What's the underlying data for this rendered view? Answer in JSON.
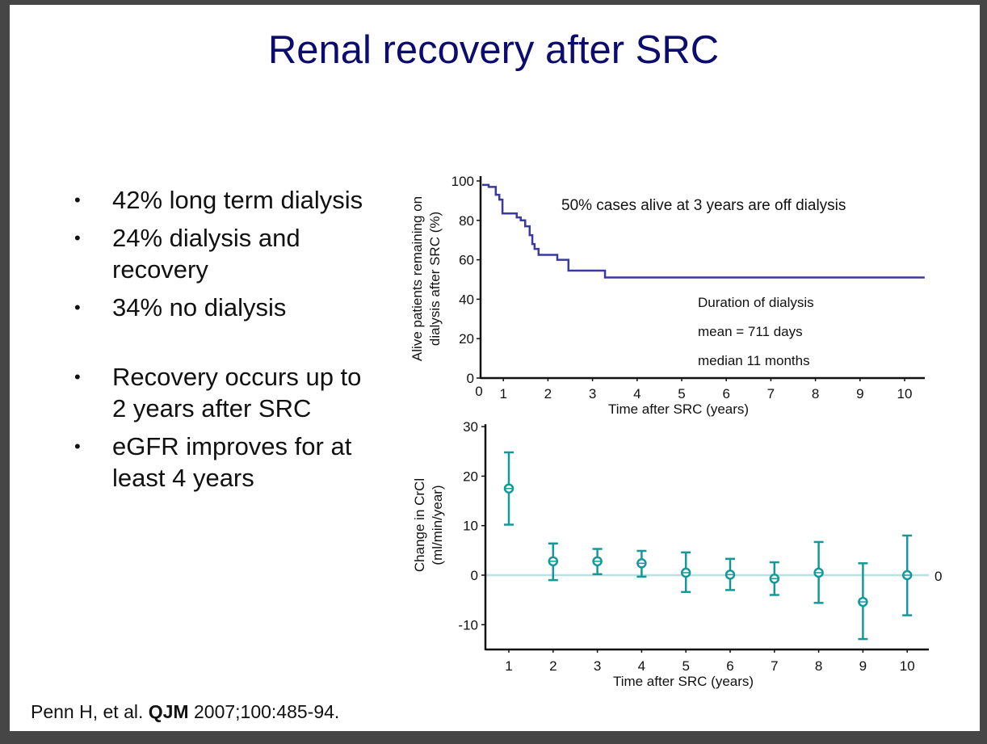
{
  "slide": {
    "title": "Renal recovery after SRC",
    "bullets": [
      "42% long term dialysis",
      "24% dialysis and recovery",
      "34% no dialysis",
      "Recovery occurs up to 2 years after SRC",
      "eGFR improves for at least 4 years"
    ],
    "citation": {
      "authors": "Penn H, et al. ",
      "journal": "QJM",
      "details": " 2007;100:485-94."
    }
  },
  "colors": {
    "title": "#0c0c6e",
    "km_line": "#3a3a9e",
    "errorbar": "#13999a",
    "zero_line": "#b9e0e3"
  },
  "chart_data": [
    {
      "type": "line",
      "subtype": "kaplan-meier step",
      "title": "",
      "xlabel": "Time after SRC (years)",
      "ylabel_lines": [
        "Alive patients remaining on",
        "dialysis after SRC (%)"
      ],
      "xlim": [
        0,
        10.45
      ],
      "ylim": [
        0,
        100
      ],
      "xticks": [
        0,
        1,
        2,
        3,
        4,
        5,
        6,
        7,
        8,
        9,
        10
      ],
      "yticks": [
        0,
        20,
        40,
        60,
        80,
        100
      ],
      "grid": false,
      "annotations": [
        "50% cases alive at 3 years are off dialysis",
        "Duration of dialysis",
        "mean = 711 days",
        "median 11 months"
      ],
      "series": [
        {
          "name": "Remaining on dialysis",
          "steps": [
            {
              "x": 0.58,
              "y": 98
            },
            {
              "x": 0.67,
              "y": 97
            },
            {
              "x": 0.83,
              "y": 93
            },
            {
              "x": 0.91,
              "y": 90.5
            },
            {
              "x": 0.98,
              "y": 83.5
            },
            {
              "x": 1.3,
              "y": 81.5
            },
            {
              "x": 1.39,
              "y": 80
            },
            {
              "x": 1.49,
              "y": 77
            },
            {
              "x": 1.59,
              "y": 72.5
            },
            {
              "x": 1.65,
              "y": 68
            },
            {
              "x": 1.7,
              "y": 65.5
            },
            {
              "x": 1.79,
              "y": 62.5
            },
            {
              "x": 2.21,
              "y": 60
            },
            {
              "x": 2.46,
              "y": 54.5
            },
            {
              "x": 3.28,
              "y": 51
            },
            {
              "x": 10.45,
              "y": 51
            }
          ]
        }
      ]
    },
    {
      "type": "scatter",
      "subtype": "errorbar",
      "title": "",
      "xlabel": "Time after SRC (years)",
      "ylabel_lines": [
        "Change in CrCl",
        "(ml/min/year)"
      ],
      "xlim": [
        0.5,
        10.5
      ],
      "ylim": [
        -15,
        30
      ],
      "xticks": [
        1,
        2,
        3,
        4,
        5,
        6,
        7,
        8,
        9,
        10
      ],
      "yticks": [
        -10,
        0,
        10,
        20,
        30
      ],
      "reference_line": {
        "y": 0,
        "label": "0"
      },
      "grid": false,
      "series": [
        {
          "name": "Change in CrCl",
          "x": [
            1,
            2,
            3,
            4,
            5,
            6,
            7,
            8,
            9,
            10
          ],
          "mean": [
            17.5,
            2.8,
            2.8,
            2.4,
            0.5,
            0.1,
            -0.7,
            0.5,
            -5.4,
            0.0
          ],
          "upper": [
            24.8,
            6.4,
            5.3,
            4.9,
            4.6,
            3.3,
            2.6,
            6.7,
            2.4,
            8.0
          ],
          "lower": [
            10.2,
            -1.0,
            0.2,
            -0.3,
            -3.4,
            -3.0,
            -4.0,
            -5.6,
            -12.9,
            -8.1
          ]
        }
      ]
    }
  ]
}
